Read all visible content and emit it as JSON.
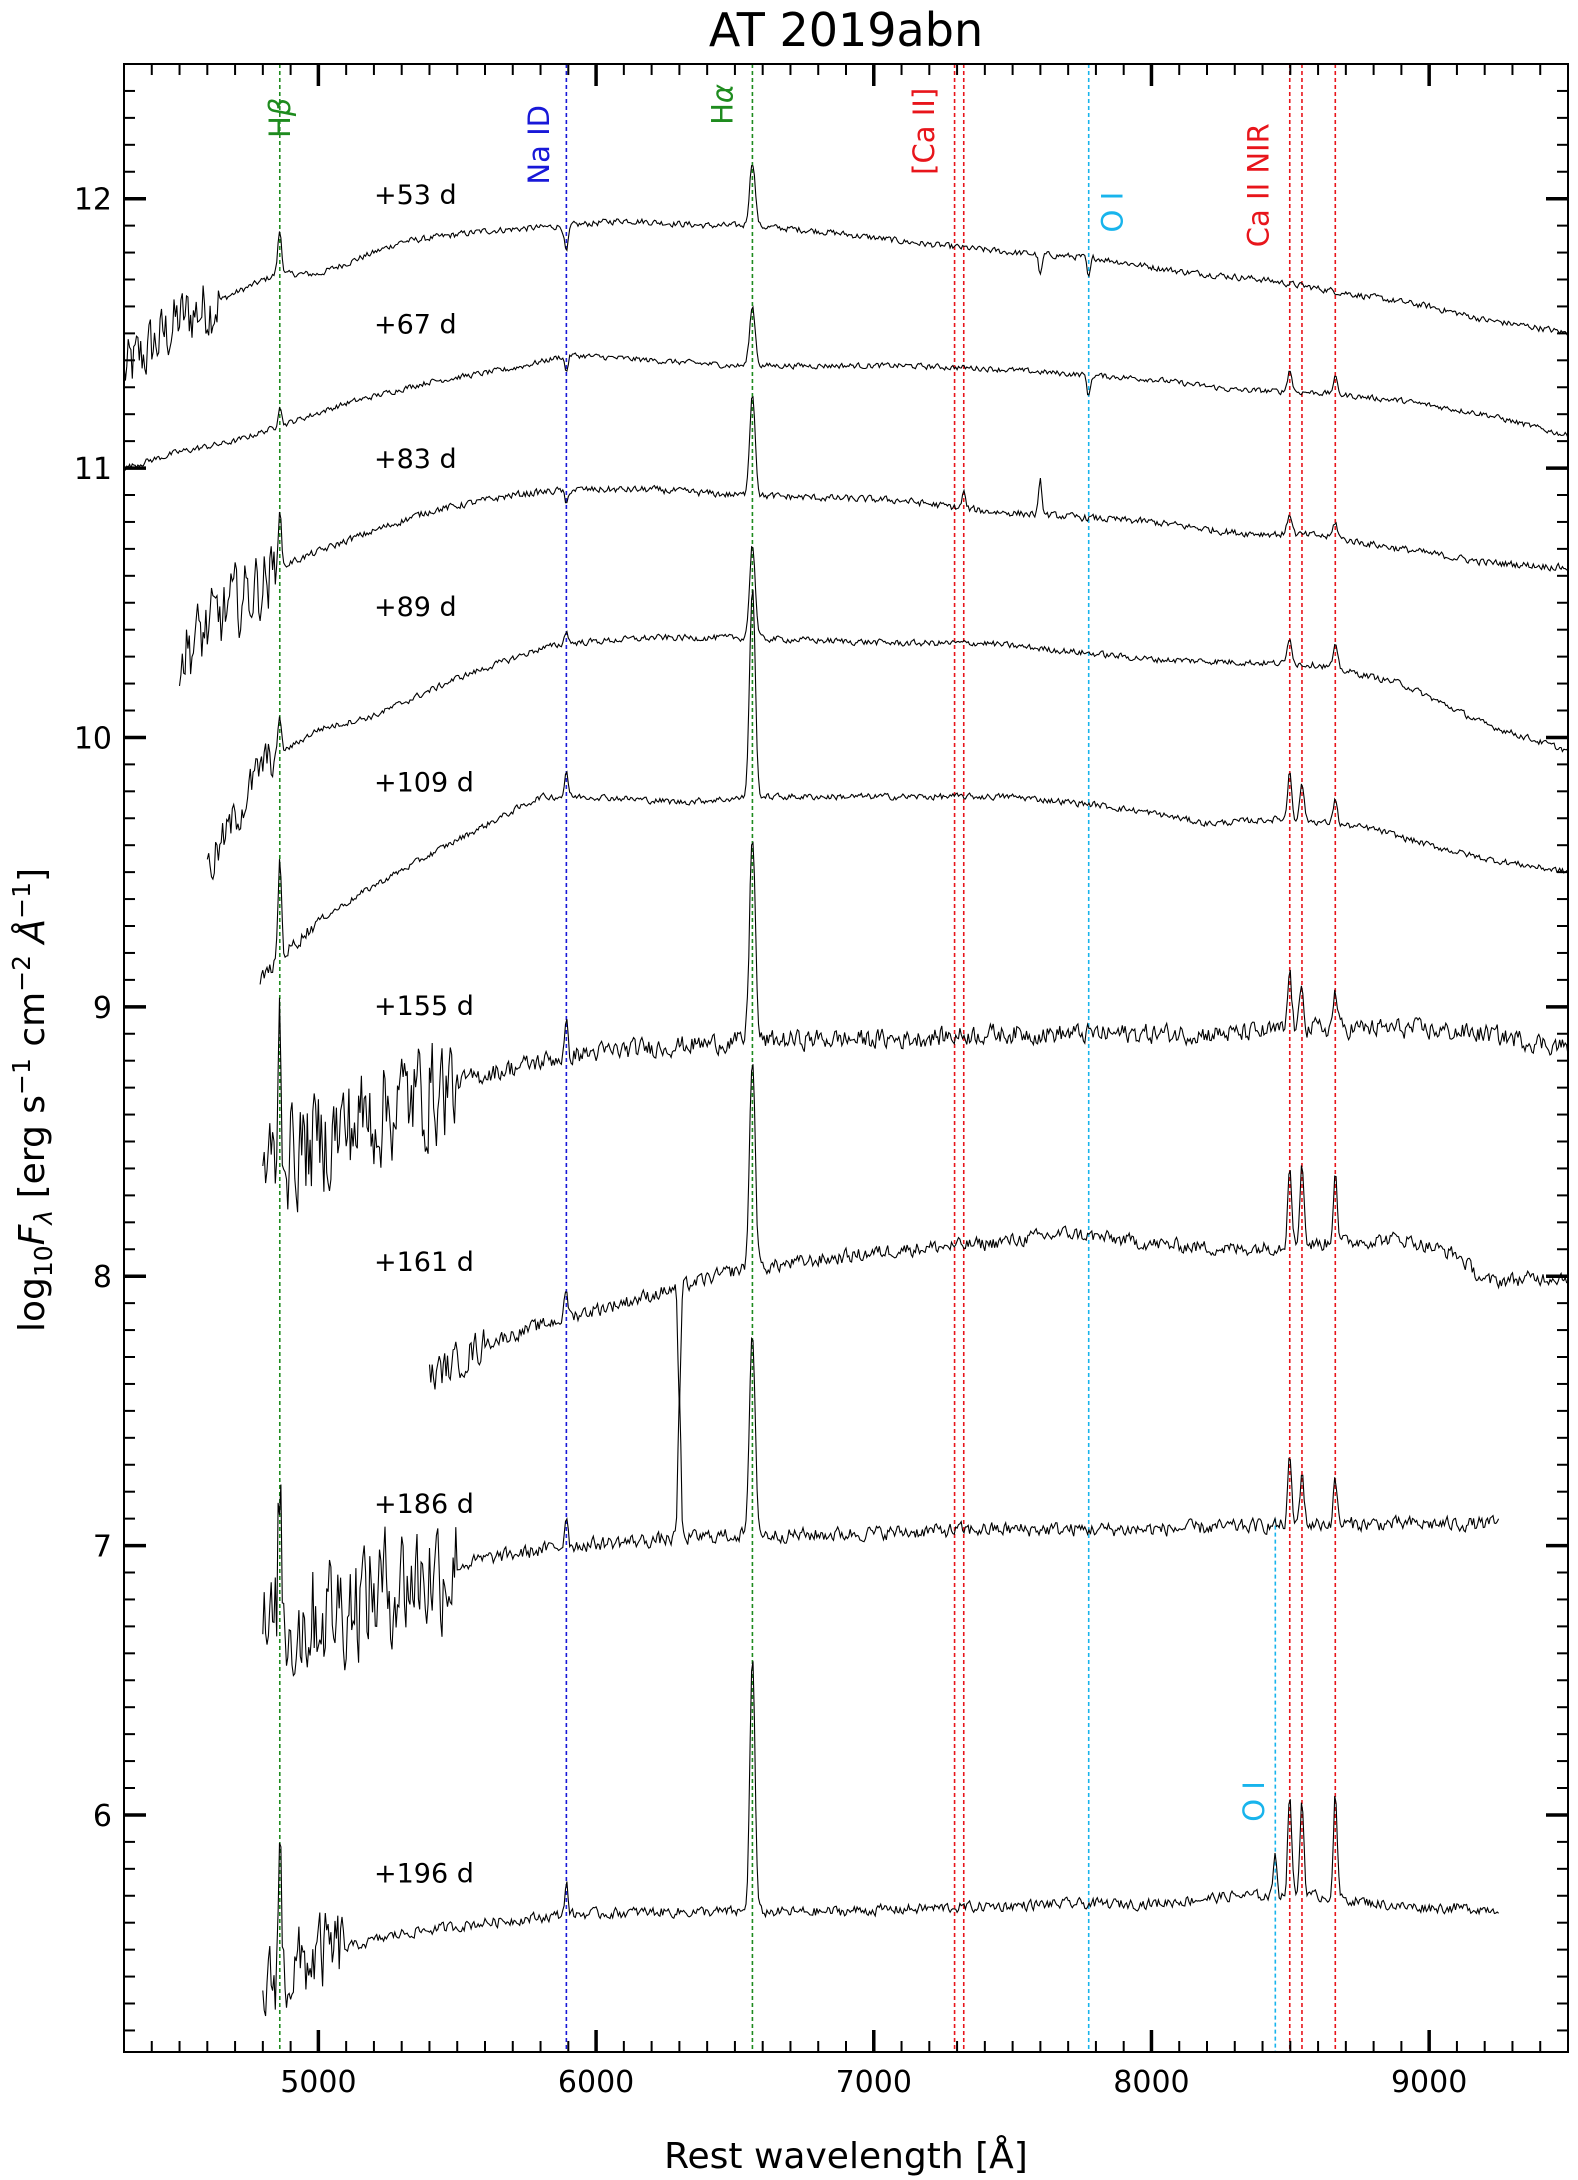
{
  "chart_data": {
    "type": "line",
    "title": "AT 2019abn",
    "xlabel": "Rest wavelength [Å]",
    "ylabel": "log10Fλ [erg s−1 cm−2 Å−1]",
    "ylabel_parts": {
      "pre": "log",
      "sub": "10",
      "F": "F",
      "lam": "λ",
      "mid1": " [erg s",
      "e1": "−1",
      "mid2": " cm",
      "e2": "−2",
      "mid3": " Å",
      "e3": "−1",
      "end": "]"
    },
    "xlim": [
      4300,
      9500
    ],
    "ylim": [
      5.12,
      12.5
    ],
    "xticks": [
      5000,
      6000,
      7000,
      8000,
      9000
    ],
    "yticks": [
      6,
      7,
      8,
      9,
      10,
      11,
      12
    ],
    "grid": false,
    "line_markers": [
      {
        "label": "Hβ",
        "label_parts": [
          "H",
          "β"
        ],
        "wavelengths": [
          4861
        ],
        "color": "#1e8b1e",
        "label_at": 4861,
        "label_y": 12.3,
        "y_top": 12.5
      },
      {
        "label": "Na ID",
        "wavelengths": [
          5893
        ],
        "color": "#1818d8",
        "label_at": 5795,
        "label_y": 12.2,
        "y_top": 12.5
      },
      {
        "label": "Hα",
        "label_parts": [
          "H",
          "α"
        ],
        "wavelengths": [
          6563
        ],
        "color": "#1e8b1e",
        "label_at": 6455,
        "label_y": 12.35,
        "y_top": 12.5
      },
      {
        "label": "[Ca II]",
        "wavelengths": [
          7291,
          7324
        ],
        "color": "#e8151b",
        "label_at": 7180,
        "label_y": 12.25,
        "y_top": 12.5
      },
      {
        "label": "O I",
        "wavelengths": [
          7774
        ],
        "color": "#18b4ec",
        "label_at": 7860,
        "label_y": 11.95,
        "y_top": 12.5
      },
      {
        "label": "Ca II NIR",
        "wavelengths": [
          8498,
          8542,
          8662
        ],
        "color": "#e8151b",
        "label_at": 8385,
        "label_y": 12.05,
        "y_top": 12.5
      },
      {
        "label": "O I",
        "wavelengths": [
          8446
        ],
        "color": "#18b4ec",
        "label_at": 8370,
        "label_y": 6.05,
        "y_top": 7.1
      }
    ],
    "series": [
      {
        "name": "+53 d",
        "label_y": 11.98,
        "x": [
          4300,
          4500,
          4700,
          4850,
          5000,
          5300,
          5600,
          5900,
          6100,
          6400,
          6550,
          6800,
          7200,
          7500,
          7800,
          8100,
          8400,
          8700,
          9000,
          9200,
          9400,
          9500
        ],
        "y": [
          11.35,
          11.55,
          11.65,
          11.72,
          11.72,
          11.84,
          11.88,
          11.9,
          11.92,
          11.9,
          11.9,
          11.88,
          11.83,
          11.8,
          11.78,
          11.73,
          11.7,
          11.65,
          11.6,
          11.55,
          11.52,
          11.5
        ],
        "noise_low": 0.18,
        "noise_high": 0.018,
        "noise_cut": 4650,
        "features": [
          {
            "w": 4861,
            "a": 0.16,
            "s": 7
          },
          {
            "w": 5893,
            "a": -0.1,
            "s": 7
          },
          {
            "w": 6563,
            "a": 0.24,
            "s": 10
          },
          {
            "w": 7600,
            "a": -0.08,
            "s": 6
          },
          {
            "w": 7774,
            "a": -0.08,
            "s": 6
          }
        ]
      },
      {
        "name": "+67 d",
        "label_y": 11.5,
        "x": [
          4300,
          4500,
          4700,
          4900,
          5100,
          5400,
          5700,
          5900,
          6200,
          6500,
          6800,
          7100,
          7400,
          7700,
          8000,
          8300,
          8600,
          8900,
          9200,
          9500
        ],
        "y": [
          11.0,
          11.06,
          11.1,
          11.17,
          11.24,
          11.32,
          11.37,
          11.42,
          11.4,
          11.38,
          11.38,
          11.38,
          11.37,
          11.35,
          11.33,
          11.29,
          11.28,
          11.25,
          11.2,
          11.12
        ],
        "noise_low": 0.018,
        "noise_high": 0.016,
        "noise_cut": 4650,
        "features": [
          {
            "w": 4861,
            "a": 0.08,
            "s": 6
          },
          {
            "w": 5893,
            "a": -0.06,
            "s": 6
          },
          {
            "w": 6563,
            "a": 0.22,
            "s": 10
          },
          {
            "w": 7774,
            "a": -0.08,
            "s": 6
          },
          {
            "w": 8498,
            "a": 0.08,
            "s": 8
          },
          {
            "w": 8662,
            "a": 0.06,
            "s": 8
          }
        ]
      },
      {
        "name": "+83 d",
        "label_y": 11.0,
        "x": [
          4500,
          4700,
          4900,
          5100,
          5400,
          5700,
          5900,
          6200,
          6500,
          6800,
          7100,
          7400,
          7700,
          8000,
          8300,
          8600,
          8900,
          9200,
          9500
        ],
        "y": [
          10.3,
          10.5,
          10.65,
          10.73,
          10.84,
          10.9,
          10.92,
          10.92,
          10.9,
          10.89,
          10.88,
          10.84,
          10.82,
          10.8,
          10.76,
          10.75,
          10.7,
          10.65,
          10.63
        ],
        "noise_low": 0.2,
        "noise_high": 0.02,
        "noise_cut": 4850,
        "features": [
          {
            "w": 4861,
            "a": 0.22,
            "s": 6
          },
          {
            "w": 5893,
            "a": -0.06,
            "s": 6
          },
          {
            "w": 6563,
            "a": 0.38,
            "s": 10
          },
          {
            "w": 7324,
            "a": 0.06,
            "s": 6
          },
          {
            "w": 7600,
            "a": 0.12,
            "s": 6
          },
          {
            "w": 8498,
            "a": 0.08,
            "s": 8
          },
          {
            "w": 8662,
            "a": 0.06,
            "s": 8
          }
        ]
      },
      {
        "name": "+89 d",
        "label_y": 10.45,
        "x": [
          4600,
          4800,
          5000,
          5200,
          5500,
          5800,
          5900,
          6200,
          6500,
          6800,
          7100,
          7400,
          7700,
          8000,
          8300,
          8600,
          8900,
          9200,
          9500
        ],
        "y": [
          9.5,
          9.9,
          10.03,
          10.08,
          10.22,
          10.33,
          10.35,
          10.37,
          10.37,
          10.36,
          10.35,
          10.35,
          10.32,
          10.29,
          10.28,
          10.27,
          10.2,
          10.05,
          9.95
        ],
        "noise_low": 0.12,
        "noise_high": 0.018,
        "noise_cut": 4850,
        "features": [
          {
            "w": 4861,
            "a": 0.14,
            "s": 6
          },
          {
            "w": 5893,
            "a": 0.05,
            "s": 6
          },
          {
            "w": 6563,
            "a": 0.35,
            "s": 10
          },
          {
            "w": 8498,
            "a": 0.1,
            "s": 8
          },
          {
            "w": 8662,
            "a": 0.08,
            "s": 8
          }
        ]
      },
      {
        "name": "+109 d",
        "label_y": 9.8,
        "x": [
          4790,
          4900,
          5000,
          5200,
          5500,
          5800,
          6000,
          6300,
          6600,
          6900,
          7200,
          7500,
          7800,
          8000,
          8200,
          8500,
          8800,
          9000,
          9200,
          9500
        ],
        "y": [
          9.1,
          9.22,
          9.32,
          9.45,
          9.62,
          9.78,
          9.78,
          9.76,
          9.78,
          9.78,
          9.78,
          9.78,
          9.75,
          9.72,
          9.68,
          9.7,
          9.66,
          9.6,
          9.55,
          9.5
        ],
        "noise_low": 0.04,
        "noise_high": 0.018,
        "noise_cut": 5000,
        "features": [
          {
            "w": 4861,
            "a": 0.38,
            "s": 6
          },
          {
            "w": 5893,
            "a": 0.1,
            "s": 6
          },
          {
            "w": 6563,
            "a": 0.78,
            "s": 10
          },
          {
            "w": 8498,
            "a": 0.18,
            "s": 7
          },
          {
            "w": 8542,
            "a": 0.14,
            "s": 7
          },
          {
            "w": 8662,
            "a": 0.1,
            "s": 7
          }
        ]
      },
      {
        "name": "+155 d",
        "label_y": 8.97,
        "x": [
          4800,
          5000,
          5300,
          5600,
          5900,
          6200,
          6500,
          6800,
          7100,
          7400,
          7700,
          8000,
          8300,
          8600,
          8900,
          9200,
          9500
        ],
        "y": [
          8.4,
          8.5,
          8.65,
          8.75,
          8.82,
          8.85,
          8.87,
          8.88,
          8.88,
          8.9,
          8.9,
          8.9,
          8.9,
          8.92,
          8.92,
          8.9,
          8.85
        ],
        "noise_low": 0.3,
        "noise_high": 0.055,
        "noise_cut": 5500,
        "features": [
          {
            "w": 4861,
            "a": 0.5,
            "s": 6
          },
          {
            "w": 5893,
            "a": 0.1,
            "s": 6
          },
          {
            "w": 6563,
            "a": 0.78,
            "s": 10
          },
          {
            "w": 8498,
            "a": 0.22,
            "s": 7
          },
          {
            "w": 8542,
            "a": 0.18,
            "s": 7
          },
          {
            "w": 8662,
            "a": 0.14,
            "s": 7
          }
        ]
      },
      {
        "name": "+161 d",
        "label_y": 8.02,
        "x": [
          5400,
          5600,
          5900,
          6200,
          6500,
          6800,
          7100,
          7400,
          7700,
          8000,
          8300,
          8600,
          8900,
          9100,
          9200,
          9500
        ],
        "y": [
          7.62,
          7.75,
          7.85,
          7.93,
          8.02,
          8.06,
          8.1,
          8.12,
          8.16,
          8.12,
          8.1,
          8.12,
          8.14,
          8.08,
          7.98,
          8.0
        ],
        "noise_low": 0.1,
        "noise_high": 0.04,
        "noise_cut": 5600,
        "features": [
          {
            "w": 5893,
            "a": 0.1,
            "s": 6
          },
          {
            "w": 6300,
            "a": -0.45,
            "s": 5
          },
          {
            "w": 6563,
            "a": 0.78,
            "s": 10
          },
          {
            "w": 8498,
            "a": 0.32,
            "s": 7
          },
          {
            "w": 8542,
            "a": 0.32,
            "s": 7
          },
          {
            "w": 8662,
            "a": 0.28,
            "s": 7
          }
        ]
      },
      {
        "name": "+186 d",
        "label_y": 7.12,
        "x": [
          4800,
          5000,
          5300,
          5600,
          5900,
          6200,
          6500,
          6800,
          7100,
          7400,
          7700,
          8000,
          8300,
          8600,
          8900,
          9250
        ],
        "y": [
          6.65,
          6.75,
          6.87,
          6.95,
          7.0,
          7.02,
          7.04,
          7.04,
          7.05,
          7.06,
          7.06,
          7.06,
          7.07,
          7.08,
          7.08,
          7.08
        ],
        "noise_low": 0.33,
        "noise_high": 0.04,
        "noise_cut": 5500,
        "features": [
          {
            "w": 4861,
            "a": 0.55,
            "s": 6
          },
          {
            "w": 5893,
            "a": 0.12,
            "s": 6
          },
          {
            "w": 6300,
            "a": 0.55,
            "s": 5
          },
          {
            "w": 6563,
            "a": 0.75,
            "s": 10
          },
          {
            "w": 8498,
            "a": 0.24,
            "s": 7
          },
          {
            "w": 8542,
            "a": 0.2,
            "s": 7
          },
          {
            "w": 8662,
            "a": 0.16,
            "s": 7
          }
        ]
      },
      {
        "name": "+196 d",
        "label_y": 5.75,
        "x": [
          4800,
          5000,
          5300,
          5600,
          5900,
          6200,
          6500,
          6800,
          7100,
          7400,
          7700,
          8000,
          8300,
          8600,
          8900,
          9250
        ],
        "y": [
          5.35,
          5.48,
          5.56,
          5.6,
          5.63,
          5.64,
          5.64,
          5.64,
          5.65,
          5.66,
          5.67,
          5.67,
          5.7,
          5.7,
          5.66,
          5.65
        ],
        "noise_low": 0.22,
        "noise_high": 0.03,
        "noise_cut": 5100,
        "features": [
          {
            "w": 4861,
            "a": 0.5,
            "s": 6
          },
          {
            "w": 5893,
            "a": 0.12,
            "s": 6
          },
          {
            "w": 6563,
            "a": 0.95,
            "s": 9
          },
          {
            "w": 8446,
            "a": 0.17,
            "s": 6
          },
          {
            "w": 8498,
            "a": 0.38,
            "s": 7
          },
          {
            "w": 8542,
            "a": 0.36,
            "s": 7
          },
          {
            "w": 8662,
            "a": 0.38,
            "s": 7
          }
        ]
      }
    ]
  }
}
